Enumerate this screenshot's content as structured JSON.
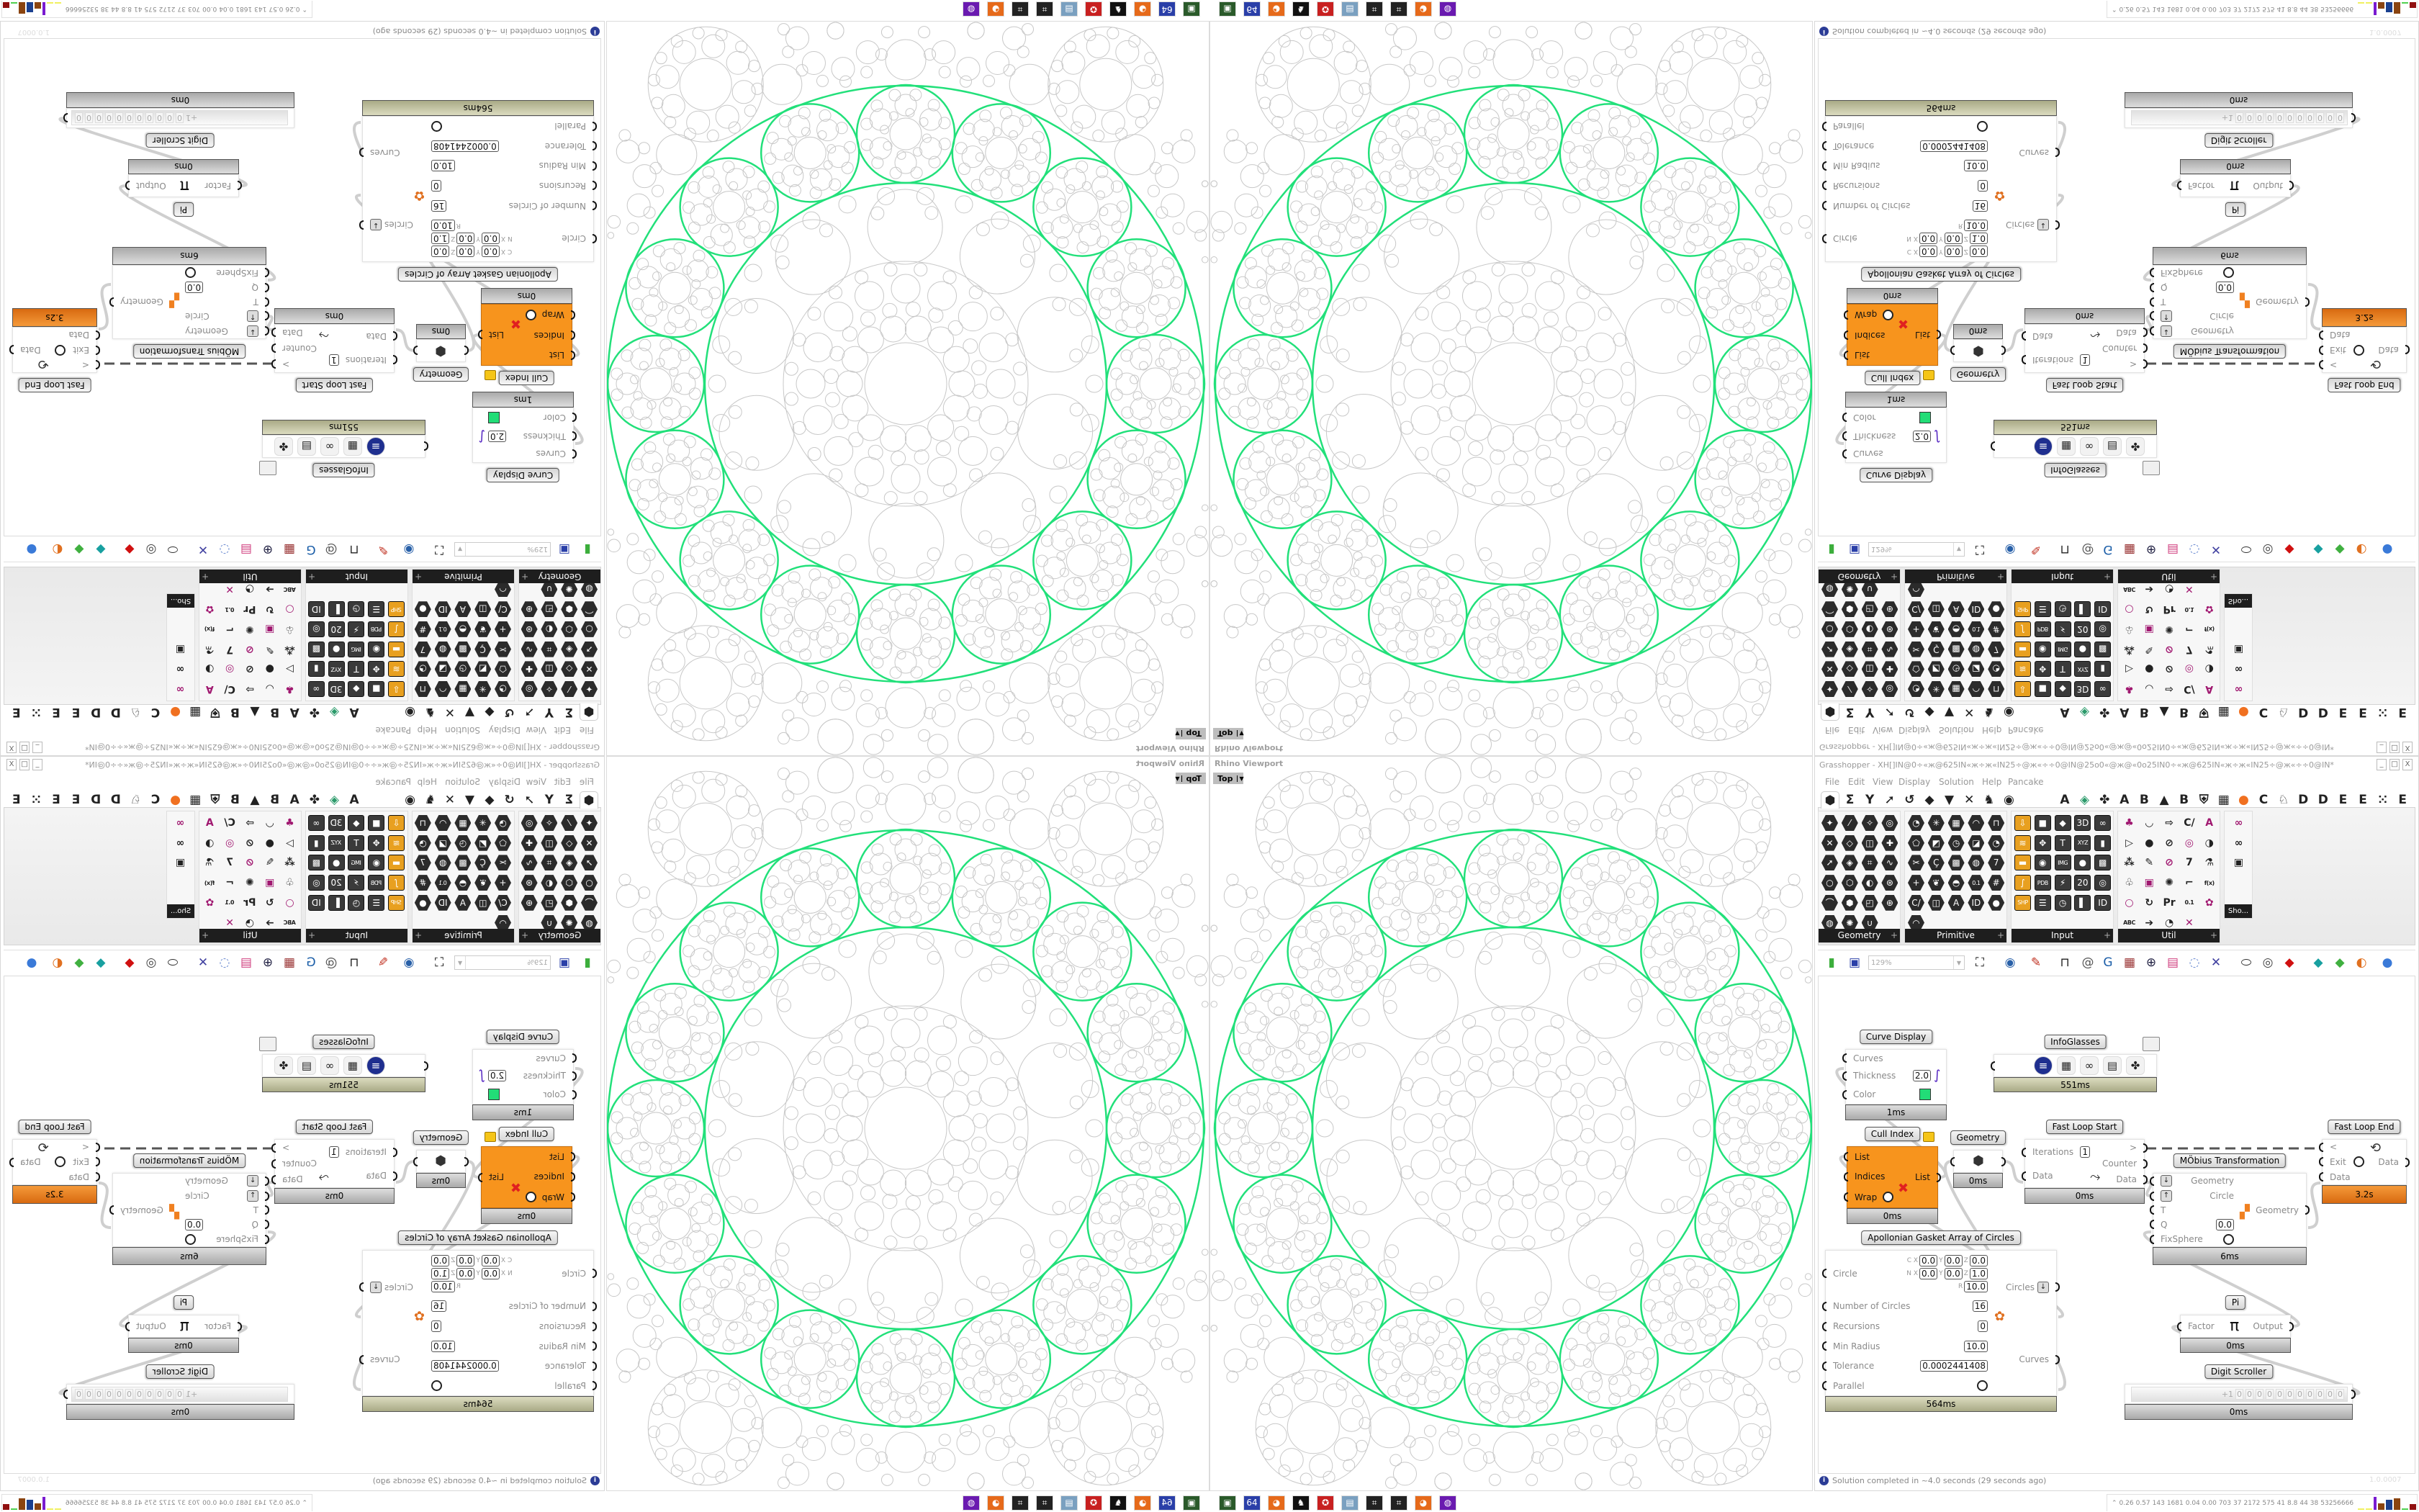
{
  "viewport": {
    "title": "Rhino Viewport",
    "view_name": "Top",
    "ring_color": "#22e07a",
    "fractal_color": "#c8c8c8"
  },
  "gh": {
    "title": "Grasshopper - XH[]IN@0÷«ж@625IN«ж÷ж«IN25÷@ж«÷÷0@IN@25o0«@ж@«0o25IN0÷«ж@625IN«ж÷ж«IN25÷@ж«÷÷0@IN*",
    "window_buttons": [
      "_",
      "□",
      "X"
    ],
    "menu": [
      "File",
      "Edit",
      "View",
      "Display",
      "Solution",
      "Help",
      "Pancake"
    ],
    "tabs": [
      {
        "name": "params-hex-icon",
        "glyph": "⬢"
      },
      {
        "name": "maths-sigma-icon",
        "glyph": "Σ"
      },
      {
        "name": "sets-icon",
        "glyph": "Y"
      },
      {
        "name": "vector-icon",
        "glyph": "➚"
      },
      {
        "name": "curve-icon",
        "glyph": "↺"
      },
      {
        "name": "surface-icon",
        "glyph": "◆"
      },
      {
        "name": "mesh-icon",
        "glyph": "▼"
      },
      {
        "name": "intersect-icon",
        "glyph": "✕"
      },
      {
        "name": "transform-icon",
        "glyph": "♞"
      },
      {
        "name": "display-eye-icon",
        "glyph": "◉"
      },
      {
        "name": "tab-a-icon",
        "glyph": "A"
      },
      {
        "name": "gem-icon",
        "glyph": "◈"
      },
      {
        "name": "puzzle-icon",
        "glyph": "✤"
      },
      {
        "name": "tab-a2-icon",
        "glyph": "A"
      },
      {
        "name": "tab-b-icon",
        "glyph": "B"
      },
      {
        "name": "mountain-icon",
        "glyph": "▲"
      },
      {
        "name": "tab-b2-icon",
        "glyph": "B"
      },
      {
        "name": "shield-icon",
        "glyph": "⛨"
      },
      {
        "name": "grid-icon",
        "glyph": "▦"
      },
      {
        "name": "orange-circle-icon",
        "glyph": "●"
      },
      {
        "name": "tab-c-icon",
        "glyph": "C"
      },
      {
        "name": "rooster-icon",
        "glyph": "♘"
      },
      {
        "name": "tab-d-icon",
        "glyph": "D"
      },
      {
        "name": "tab-d2-icon",
        "glyph": "D"
      },
      {
        "name": "tab-e-icon",
        "glyph": "E"
      },
      {
        "name": "tab-e2-icon",
        "glyph": "E"
      },
      {
        "name": "dots-icon",
        "glyph": "⁙"
      },
      {
        "name": "tab-e3-icon",
        "glyph": "E"
      }
    ],
    "panels": [
      {
        "label": "Geometry",
        "style": "hex",
        "icons": [
          "✦",
          "⁄",
          "✧",
          "◎",
          "✕",
          "◇",
          "◫",
          "✚",
          "➚",
          "◈",
          "⌗",
          "∿",
          "○",
          "⬡",
          "◐",
          "⊛",
          "⌒",
          "⬢",
          "◰",
          "⊕",
          "◍",
          "✺",
          "∪"
        ]
      },
      {
        "label": "Primitive",
        "style": "hex",
        "icons": [
          "◔",
          "✳",
          "▦",
          "◠",
          "⊓",
          "⬠",
          "◩",
          "◷",
          "◪",
          "◔",
          "✂",
          "Ç",
          "▩",
          "◍",
          "7",
          "+",
          "❦",
          "◓",
          "0.1",
          "#",
          "C/",
          "◫",
          "A",
          "ID",
          "●",
          "◠"
        ]
      },
      {
        "label": "Input",
        "style": "sq",
        "icons": [
          "⇩",
          "■",
          "◆",
          "3D",
          "∞",
          "≋",
          "✥",
          "T",
          "XYZ",
          "▮",
          "▬",
          "◉",
          "IMG",
          "●",
          "▩",
          "∫",
          "PDB",
          "⚡",
          "20",
          "◎",
          "SHP",
          "☰",
          "◷",
          "▌",
          "ID"
        ]
      },
      {
        "label": "Util",
        "style": "util",
        "icons": [
          "♣",
          "◡",
          "⇨",
          "C/",
          "A",
          "▷",
          "●",
          "⊘",
          "◎",
          "◑",
          "⁂",
          "✎",
          "⊘",
          "7",
          "⚗",
          "♧",
          "▣",
          "✺",
          "⌐",
          "f(x)",
          "○",
          "↻",
          "Pr",
          "0.1",
          "✿",
          "ABC",
          "➔",
          "◔",
          "✕"
        ]
      },
      {
        "label": "Sho...",
        "style": "util",
        "icons": [
          "∞",
          "∞",
          "▣"
        ]
      }
    ],
    "toolbar": {
      "zoom_value": "129%",
      "icons": [
        {
          "name": "new-document-icon",
          "glyph": "▮",
          "color": "#3cae3c"
        },
        {
          "name": "save-icon",
          "glyph": "▣",
          "color": "#2a3fa8"
        },
        {
          "name": "zoom-extents-icon",
          "glyph": "⛶",
          "color": "#111"
        },
        {
          "name": "preview-eye-icon",
          "glyph": "◉",
          "color": "#2860a8"
        },
        {
          "name": "sketch-brush-icon",
          "glyph": "✎",
          "color": "#c03020"
        },
        {
          "name": "plugin-icon",
          "glyph": "⊓",
          "color": "#222"
        },
        {
          "name": "at-icon",
          "glyph": "@",
          "color": "#555"
        },
        {
          "name": "gha-icon",
          "glyph": "G",
          "color": "#1b5ea8"
        },
        {
          "name": "image-icon",
          "glyph": "▦",
          "color": "#933"
        },
        {
          "name": "search-icon",
          "glyph": "⊕",
          "color": "#224"
        },
        {
          "name": "box-icon",
          "glyph": "▤",
          "color": "#d04080"
        },
        {
          "name": "bulb-icon",
          "glyph": "◌",
          "color": "#6a8ad0"
        },
        {
          "name": "cross-icon",
          "glyph": "✕",
          "color": "#4040a0"
        },
        {
          "name": "bell-icon",
          "glyph": "⬭",
          "color": "#333"
        },
        {
          "name": "rings-icon",
          "glyph": "◎",
          "color": "#444"
        },
        {
          "name": "red-cube-icon",
          "glyph": "◆",
          "color": "#d01010"
        },
        {
          "name": "teal-shape-icon",
          "glyph": "◆",
          "color": "#18a0a0"
        },
        {
          "name": "green-shape-icon",
          "glyph": "◆",
          "color": "#40b040"
        },
        {
          "name": "half-sphere-icon",
          "glyph": "◐",
          "color": "#e07020"
        },
        {
          "name": "blue-sphere-icon",
          "glyph": "●",
          "color": "#3a7ad8"
        }
      ]
    },
    "components": [
      {
        "id": "curve_display",
        "label": "Curve Display",
        "icon": "curve-display-icon",
        "style": "",
        "footer": "normal",
        "time": "1ms",
        "inputs": [
          {
            "name": "Curves"
          },
          {
            "name": "Thickness",
            "value": "2.0"
          },
          {
            "name": "Color",
            "swatch": "#22dd77"
          }
        ],
        "outputs": []
      },
      {
        "id": "infoglasses",
        "label": "InfoGlasses",
        "icon": "infoglasses-icon",
        "style": "",
        "footer": "slow",
        "time": "551ms",
        "icons": [
          {
            "name": "list-icon",
            "glyph": "≡"
          },
          {
            "name": "grid-icon",
            "glyph": "▦"
          },
          {
            "name": "glasses-icon",
            "glyph": "∞"
          },
          {
            "name": "cabinet-icon",
            "glyph": "▤"
          },
          {
            "name": "puzzle-icon",
            "glyph": "✤"
          }
        ],
        "inputs": [],
        "outputs": []
      },
      {
        "id": "cull_index",
        "label": "Cull Index",
        "icon": "cull-index-icon",
        "style": "orange",
        "footer": "normal",
        "time": "0ms",
        "inputs": [
          {
            "name": "List"
          },
          {
            "name": "Indices"
          },
          {
            "name": "Wrap",
            "toggle": false
          }
        ],
        "outputs": [
          {
            "name": "List"
          }
        ]
      },
      {
        "id": "geometry",
        "label": "Geometry",
        "icon": "geometry-param-icon",
        "style": "",
        "footer": "normal",
        "time": "0ms",
        "inputs": [],
        "outputs": []
      },
      {
        "id": "fast_loop_start",
        "label": "Fast Loop Start",
        "icon": "loop-start-icon",
        "style": "",
        "footer": "normal",
        "time": "0ms",
        "inputs": [
          {
            "name": "Iterations",
            "value": "1"
          },
          {
            "name": "Data"
          }
        ],
        "outputs": [
          {
            "name": ">"
          },
          {
            "name": "Counter"
          },
          {
            "name": "Data"
          }
        ]
      },
      {
        "id": "fast_loop_end",
        "label": "Fast Loop End",
        "icon": "loop-end-icon",
        "style": "",
        "footer": "critical",
        "time": "3.2s",
        "inputs": [
          {
            "name": "<"
          },
          {
            "name": "Exit",
            "toggle": false
          },
          {
            "name": "Data"
          }
        ],
        "outputs": [
          {
            "name": "Data"
          }
        ]
      },
      {
        "id": "mobius",
        "label": "MÖbius Transformation",
        "icon": "mobius-icon",
        "style": "",
        "footer": "normal",
        "time": "6ms",
        "inputs": [
          {
            "name": "Geometry",
            "flag": "flatten-down"
          },
          {
            "name": "Circle",
            "flag": "graft-up"
          },
          {
            "name": "T"
          },
          {
            "name": "Q",
            "value": "0.0"
          },
          {
            "name": "FixSphere",
            "toggle": false
          }
        ],
        "outputs": [
          {
            "name": "Geometry"
          }
        ]
      },
      {
        "id": "apollonian",
        "label": "Apollonian Gasket Array of Circles",
        "icon": "apollonian-icon",
        "style": "",
        "footer": "slow",
        "time": "564ms",
        "inputs": [
          {
            "name": "Circle",
            "vector": [
              [
                [
                  "C X",
                  "0.0"
                ],
                [
                  "Y",
                  "0.0"
                ],
                [
                  "Z",
                  "0.0"
                ]
              ],
              [
                [
                  "N X",
                  "0.0"
                ],
                [
                  "Y",
                  "0.0"
                ],
                [
                  "Z",
                  "1.0"
                ]
              ],
              [
                [
                  "R",
                  "10.0"
                ]
              ]
            ]
          },
          {
            "name": "Number of Circles",
            "value": "16"
          },
          {
            "name": "Recursions",
            "value": "0"
          },
          {
            "name": "Min Radius",
            "value": "10.0"
          },
          {
            "name": "Tolerance",
            "value": "0.0002441408"
          },
          {
            "name": "Parallel",
            "toggle": false
          }
        ],
        "outputs": [
          {
            "name": "Circles",
            "flag": "flatten-down"
          },
          {
            "name": "Curves"
          }
        ]
      },
      {
        "id": "pi",
        "label": "Pi",
        "icon": "pi-icon",
        "style": "",
        "footer": "normal",
        "time": "0ms",
        "inputs": [
          {
            "name": "Factor"
          }
        ],
        "outputs": [
          {
            "name": "Output"
          }
        ]
      },
      {
        "id": "digit_scroller",
        "label": "Digit Scroller",
        "icon": "digit-scroller-icon",
        "style": "",
        "footer": "normal",
        "time": "0ms",
        "prefix": "+1",
        "digits": [
          "0",
          "0",
          "0",
          "0",
          "0",
          "0",
          "0",
          "0",
          "0",
          "0",
          "0"
        ],
        "inputs": [],
        "outputs": []
      }
    ],
    "status": "Solution completed in ~4.0 seconds (29 seconds ago)",
    "version": "1.0.0007"
  },
  "taskbar": {
    "apps": [
      {
        "name": "task-manager-icon",
        "glyph": "▣",
        "color": "#2a5a2a"
      },
      {
        "name": "floppy-64-icon",
        "glyph": "64",
        "color": "#2a3fa8"
      },
      {
        "name": "firefox-icon",
        "glyph": "◕",
        "color": "#e66a1a"
      },
      {
        "name": "rhino-icon",
        "glyph": "♞",
        "color": "#111"
      },
      {
        "name": "red-app-icon",
        "glyph": "✪",
        "color": "#c82020"
      },
      {
        "name": "notepad-icon",
        "glyph": "▤",
        "color": "#7aa0c0"
      },
      {
        "name": "qr-app-icon",
        "glyph": "⌗",
        "color": "#222"
      },
      {
        "name": "qr-app-2-icon",
        "glyph": "⌗",
        "color": "#222"
      },
      {
        "name": "firefox-2-icon",
        "glyph": "◕",
        "color": "#e66a1a"
      },
      {
        "name": "purple-app-icon",
        "glyph": "◍",
        "color": "#6a1ab0"
      }
    ],
    "stats": [
      "0.26",
      "0.57",
      "143",
      "1681",
      "0.04",
      "0.00",
      "703",
      "37",
      "2172",
      "575",
      "41",
      "8.8",
      "44",
      "38",
      "53256666"
    ],
    "stat_bar_colors": [
      "#f0f060",
      "#f0f060",
      "#7a1ad0",
      "#8a4410",
      "#1a4090",
      "#8a4410",
      "#50d050",
      "#901010"
    ]
  }
}
